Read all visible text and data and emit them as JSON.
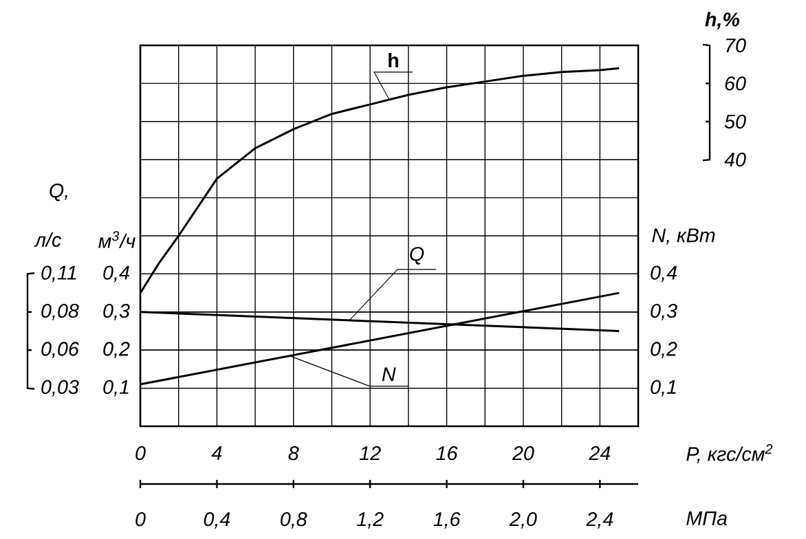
{
  "chart_data": {
    "type": "line",
    "xlabel": "P,  кгс/см$^{2}$",
    "x2label": "МПа",
    "ylabel": "м$^{3}$/ч",
    "y2label": "N, кВт",
    "y3label": "h,%",
    "annotations": [
      "Q,",
      "л/с",
      "0,11",
      "0,08",
      "0,06",
      "0,03"
    ],
    "xlim": [
      0,
      26
    ],
    "xticks": [
      0,
      4,
      8,
      12,
      16,
      20,
      24
    ],
    "x2lim": [
      0,
      2.6
    ],
    "x2ticks": [
      0,
      {
        "value": 0.4,
        "label": "0,4"
      },
      {
        "value": 0.8,
        "label": "0,8"
      },
      {
        "value": 1.2,
        "label": "1,2"
      },
      {
        "value": 1.6,
        "label": "1,6"
      },
      {
        "value": 2.0,
        "label": "2,0"
      },
      {
        "value": 2.4,
        "label": "2,4"
      }
    ],
    "ylim": [
      0,
      1.0
    ],
    "yticks": [
      {
        "value": 0.1,
        "label": "0,1"
      },
      {
        "value": 0.2,
        "label": "0,2"
      },
      {
        "value": 0.3,
        "label": "0,3"
      },
      {
        "value": 0.4,
        "label": "0,4"
      }
    ],
    "y2lim": [
      0,
      1.0
    ],
    "y2ticks": [
      {
        "value": 0.1,
        "label": "0,1"
      },
      {
        "value": 0.2,
        "label": "0,2"
      },
      {
        "value": 0.3,
        "label": "0,3"
      },
      {
        "value": 0.4,
        "label": "0,4"
      }
    ],
    "y3lim": [
      -30,
      70
    ],
    "y3ticks": [
      40,
      50,
      60,
      70
    ],
    "grid": true,
    "series": [
      {
        "name": "h",
        "axis": "y3",
        "color": "#000000",
        "x": [
          0,
          1,
          2,
          4,
          6,
          8,
          10,
          12,
          14,
          16,
          18,
          20,
          22,
          24,
          25
        ],
        "values": [
          5,
          13,
          20,
          35,
          43,
          48,
          52,
          54.5,
          57,
          59,
          60.5,
          62,
          63,
          63.5,
          64
        ]
      },
      {
        "name": "Q",
        "axis": "y",
        "color": "#000000",
        "x": [
          0,
          25
        ],
        "values": [
          0.3,
          0.25
        ]
      },
      {
        "name": "N",
        "axis": "y2",
        "color": "#000000",
        "x": [
          0,
          25
        ],
        "values": [
          0.11,
          0.35
        ]
      }
    ]
  }
}
